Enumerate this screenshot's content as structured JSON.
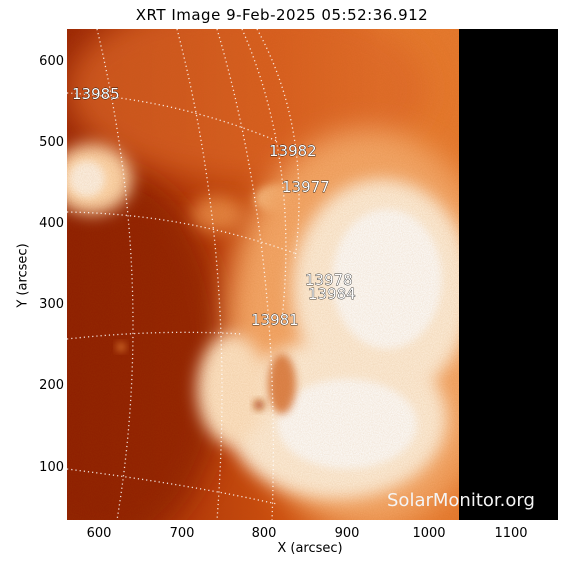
{
  "title": "XRT Image   9-Feb-2025 05:52:36.912",
  "x_axis": {
    "label": "X (arcsec)",
    "ticks": [
      "600",
      "700",
      "800",
      "900",
      "1000",
      "1100"
    ]
  },
  "y_axis": {
    "label": "Y (arcsec)",
    "ticks": [
      "600",
      "500",
      "400",
      "300",
      "200",
      "100"
    ]
  },
  "regions": [
    "13985",
    "13982",
    "13977",
    "13978",
    "13984",
    "13981"
  ],
  "watermark": "SolarMonitor.org",
  "colors": {
    "corona_dark": "#8e1d04",
    "corona_mid": "#d64f0e",
    "corona_bright": "#ffcf9a",
    "off_disk": "#000000",
    "grid": "#ffffff"
  }
}
